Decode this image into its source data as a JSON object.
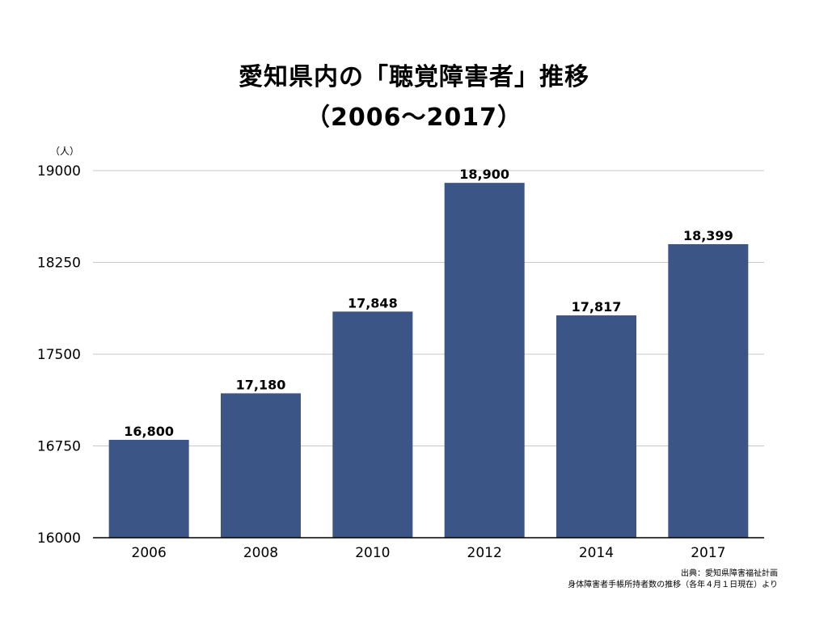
{
  "header": {
    "title_line1": "愛知県内の「聴覚障害者」推移",
    "title_line2": "（2006〜2017）"
  },
  "unit_label": "（人）",
  "source": {
    "line1": "出典：愛知県障害福祉計画",
    "line2": "身体障害者手帳所持者数の推移（各年４月１日現在）より"
  },
  "colors": {
    "bar": "#3b5686",
    "grid": "#c8c8c8",
    "axis": "#000000"
  },
  "chart_data": {
    "type": "bar",
    "title": "愛知県内の「聴覚障害者」推移 （2006〜2017）",
    "categories": [
      "2006",
      "2008",
      "2010",
      "2012",
      "2014",
      "2017"
    ],
    "values": [
      16800,
      17180,
      17848,
      18900,
      17817,
      18399
    ],
    "data_labels": [
      "16,800",
      "17,180",
      "17,848",
      "18,900",
      "17,817",
      "18,399"
    ],
    "ylabel": "（人）",
    "xlabel": "",
    "ylim": [
      16000,
      19000
    ],
    "yticks": [
      "16000",
      "16750",
      "17500",
      "18250",
      "19000"
    ],
    "ytick_values": [
      16000,
      16750,
      17500,
      18250,
      19000
    ],
    "grid": true,
    "legend": "none"
  }
}
